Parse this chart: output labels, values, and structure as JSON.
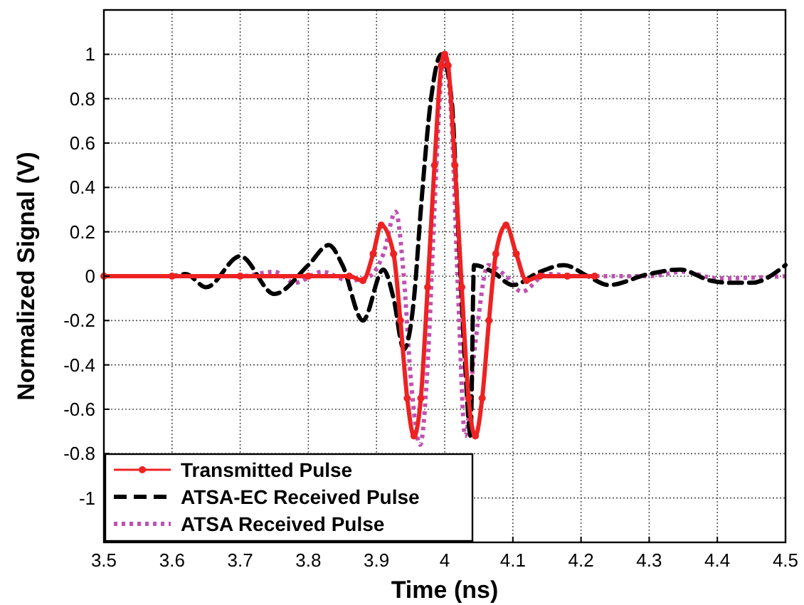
{
  "chart_data": {
    "type": "line",
    "xlabel": "Time (ns)",
    "ylabel": "Normalized Signal (V)",
    "xlim": [
      3.5,
      4.5
    ],
    "ylim": [
      -1.2,
      1.2
    ],
    "xticks": [
      3.5,
      3.6,
      3.7,
      3.8,
      3.9,
      4,
      4.1,
      4.2,
      4.3,
      4.4,
      4.5
    ],
    "yticks": [
      -1,
      -0.8,
      -0.6,
      -0.4,
      -0.2,
      0,
      0.2,
      0.4,
      0.6,
      0.8,
      1
    ],
    "grid": true,
    "legend": "bottom left",
    "series": [
      {
        "name": "Transmitted Pulse",
        "color": "#ee2222",
        "marker": "circle",
        "line_style": "solid",
        "x": [
          3.5,
          3.6,
          3.7,
          3.8,
          3.86,
          3.88,
          3.895,
          3.907,
          3.925,
          3.935,
          3.945,
          3.955,
          3.965,
          3.975,
          3.985,
          3.995,
          4.0,
          4.005,
          4.015,
          4.025,
          4.035,
          4.045,
          4.055,
          4.065,
          4.075,
          4.09,
          4.105,
          4.12,
          4.14,
          4.18,
          4.22
        ],
        "values": [
          0,
          0,
          0,
          0,
          0,
          -0.02,
          0.1,
          0.23,
          0.1,
          -0.2,
          -0.55,
          -0.72,
          -0.55,
          -0.05,
          0.5,
          0.95,
          1.0,
          0.95,
          0.5,
          -0.05,
          -0.55,
          -0.72,
          -0.55,
          -0.2,
          0.1,
          0.23,
          0.1,
          -0.02,
          0,
          0,
          0
        ]
      },
      {
        "name": "ATSA-EC Received Pulse",
        "color": "#000000",
        "marker": "none",
        "line_style": "dashed",
        "x": [
          3.5,
          3.6,
          3.62,
          3.65,
          3.7,
          3.75,
          3.8,
          3.83,
          3.85,
          3.88,
          3.91,
          3.925,
          3.94,
          3.955,
          3.965,
          3.98,
          3.995,
          4.01,
          4.02,
          4.03,
          4.038,
          4.043,
          4.07,
          4.1,
          4.14,
          4.175,
          4.21,
          4.24,
          4.3,
          4.345,
          4.39,
          4.42,
          4.45,
          4.5
        ],
        "values": [
          0,
          0,
          0.01,
          -0.05,
          0.09,
          -0.08,
          0.05,
          0.14,
          0.05,
          -0.2,
          0.03,
          -0.1,
          -0.33,
          -0.1,
          0.3,
          0.8,
          1.0,
          0.8,
          0.2,
          -0.4,
          -0.72,
          0.05,
          0.02,
          -0.04,
          0.02,
          0.05,
          0,
          -0.04,
          0.01,
          0.03,
          -0.02,
          -0.03,
          -0.03,
          0.05
        ]
      },
      {
        "name": "ATSA Received Pulse",
        "color": "#c050b0",
        "marker": "none",
        "line_style": "dotted",
        "x": [
          3.5,
          3.7,
          3.75,
          3.78,
          3.82,
          3.86,
          3.89,
          3.91,
          3.928,
          3.94,
          3.95,
          3.964,
          3.975,
          3.985,
          3.995,
          4.0,
          4.01,
          4.02,
          4.03,
          4.045,
          4.064,
          4.09,
          4.113,
          4.15,
          4.2,
          4.3,
          4.35,
          4.4,
          4.5
        ],
        "values": [
          0,
          0,
          0.02,
          -0.03,
          0.02,
          -0.02,
          0,
          0.1,
          0.29,
          0,
          -0.45,
          -0.76,
          -0.4,
          0.3,
          0.9,
          1.0,
          0.7,
          -0.1,
          -0.72,
          -0.3,
          0.05,
          0,
          -0.07,
          0.01,
          0,
          0,
          0.02,
          -0.01,
          0
        ]
      }
    ]
  }
}
